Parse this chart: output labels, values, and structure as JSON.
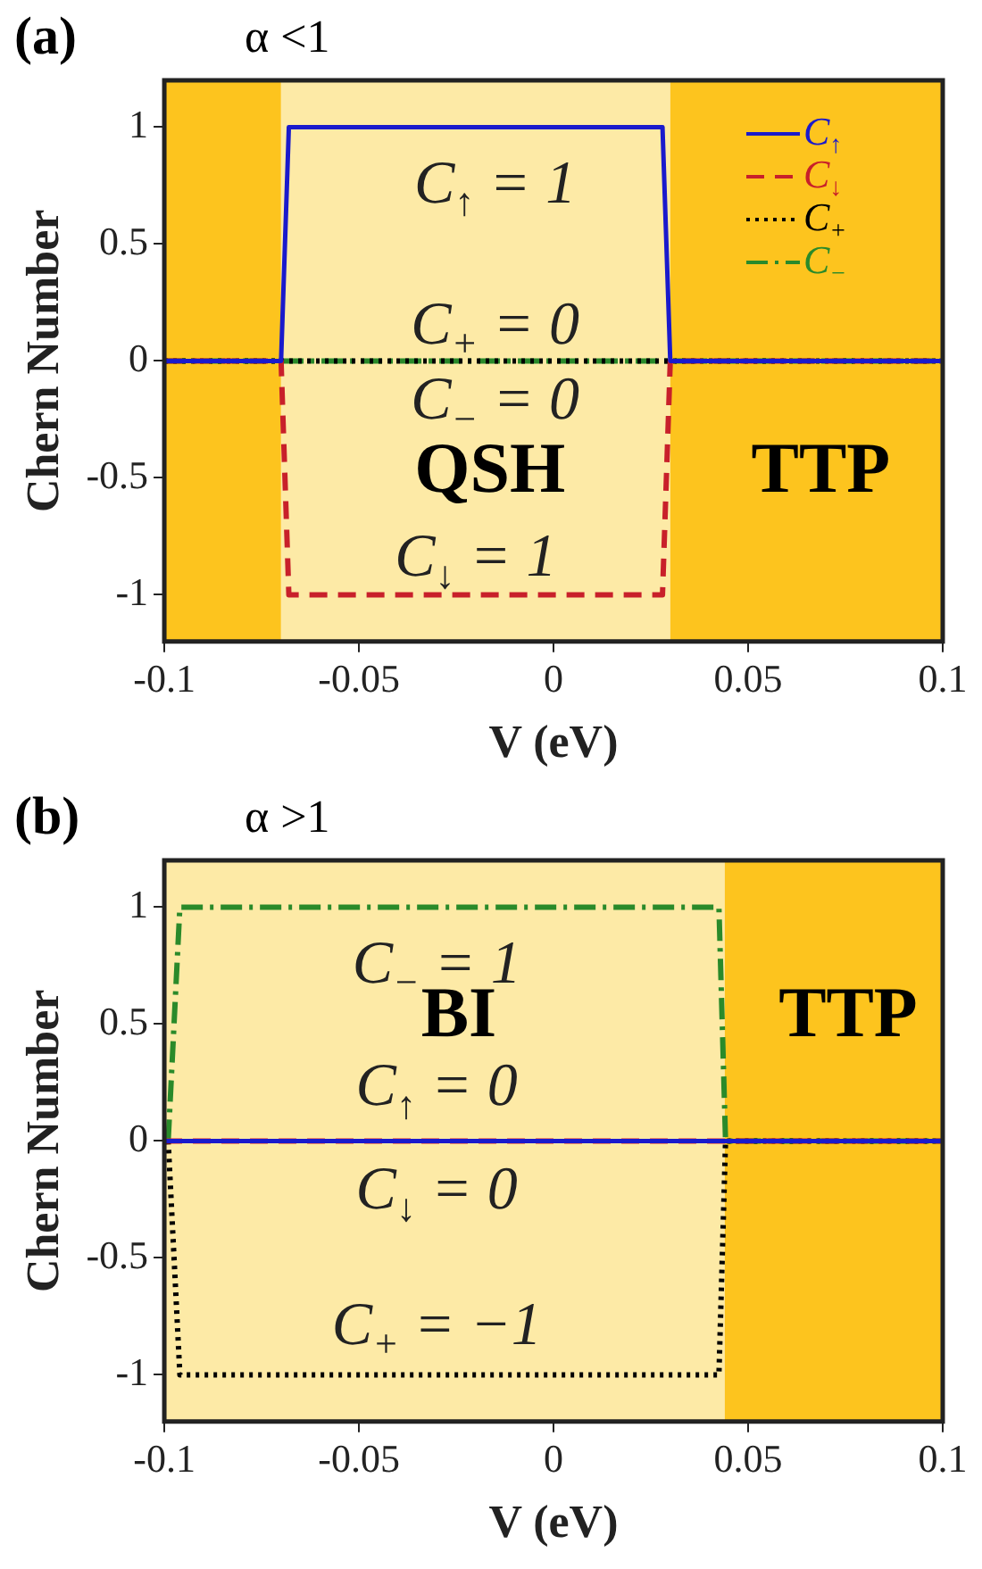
{
  "chart_data": [
    {
      "type": "line",
      "title": "(a)",
      "subtitle": "α <1",
      "xlabel": "V (eV)",
      "ylabel": "Chern Number",
      "xlim": [
        -0.1,
        0.1
      ],
      "xticks": [
        -0.1,
        -0.05,
        0,
        0.05,
        0.1
      ],
      "ylim": [
        -1.2,
        1.2
      ],
      "yticks": [
        -1,
        -0.5,
        0,
        0.5,
        1
      ],
      "grid": false,
      "legend": "top right",
      "marker": "none",
      "bands": [
        {
          "axis": "x",
          "from": -0.1,
          "to": -0.07,
          "color": "#fdc41e",
          "label": null
        },
        {
          "axis": "x",
          "from": -0.07,
          "to": 0.03,
          "color": "#fdeaa6",
          "label": "QSH"
        },
        {
          "axis": "x",
          "from": 0.03,
          "to": 0.1,
          "color": "#fdc41e",
          "label": "TTP"
        }
      ],
      "series": [
        {
          "name": "C$_{↑}$",
          "color": "#1a1acc",
          "line_style": "solid",
          "x": [
            -0.1,
            -0.07,
            -0.068,
            0.028,
            0.03,
            0.1
          ],
          "values": [
            0,
            0,
            1,
            1,
            0,
            0
          ]
        },
        {
          "name": "C$_{↓}$",
          "color": "#c8202a",
          "line_style": "dashed",
          "x": [
            -0.1,
            -0.07,
            -0.068,
            0.028,
            0.03,
            0.1
          ],
          "values": [
            0,
            0,
            -1,
            -1,
            0,
            0
          ]
        },
        {
          "name": "C$_{+}$",
          "color": "#000000",
          "line_style": "dotted",
          "x": [
            -0.1,
            0.1
          ],
          "values": [
            0,
            0
          ]
        },
        {
          "name": "C$_{−}$",
          "color": "#2a8a2a",
          "line_style": "dashdot",
          "x": [
            -0.1,
            0.1
          ],
          "values": [
            0,
            0
          ]
        }
      ],
      "annotations": [
        "C$_{↑}$ = 1",
        "C$_{+}$ = 0",
        "C$_{−}$ = 0",
        "C$_{↓}$ = 1"
      ]
    },
    {
      "type": "line",
      "title": "(b)",
      "subtitle": "α >1",
      "xlabel": "V (eV)",
      "ylabel": "Chern Number",
      "xlim": [
        -0.1,
        0.1
      ],
      "xticks": [
        -0.1,
        -0.05,
        0,
        0.05,
        0.1
      ],
      "ylim": [
        -1.2,
        1.2
      ],
      "yticks": [
        -1,
        -0.5,
        0,
        0.5,
        1
      ],
      "grid": false,
      "marker": "none",
      "bands": [
        {
          "axis": "x",
          "from": -0.1,
          "to": 0.044,
          "color": "#fdeaa6",
          "label": "BI"
        },
        {
          "axis": "x",
          "from": 0.044,
          "to": 0.1,
          "color": "#fdc41e",
          "label": "TTP"
        }
      ],
      "series": [
        {
          "color": "#1a1acc",
          "line_style": "solid",
          "x": [
            -0.1,
            0.1
          ],
          "values": [
            0,
            0
          ]
        },
        {
          "color": "#e02020",
          "line_style": "dashed",
          "x": [
            -0.1,
            0.1
          ],
          "values": [
            0,
            0
          ]
        },
        {
          "color": "#000000",
          "line_style": "dotted",
          "x": [
            -0.099,
            -0.096,
            0.0425,
            0.0442,
            0.1
          ],
          "values": [
            0,
            -1,
            -1,
            0,
            0
          ]
        },
        {
          "color": "#2a8a2a",
          "line_style": "dashdot",
          "x": [
            -0.099,
            -0.096,
            0.0425,
            0.0442,
            0.1
          ],
          "values": [
            0,
            1,
            1,
            0,
            0
          ]
        }
      ],
      "annotations": [
        "C$_{−}$ = 1",
        "C$_{↑}$ = 0",
        "C$_{↓}$ = 0",
        "C$_{+}$ = −1"
      ]
    }
  ]
}
